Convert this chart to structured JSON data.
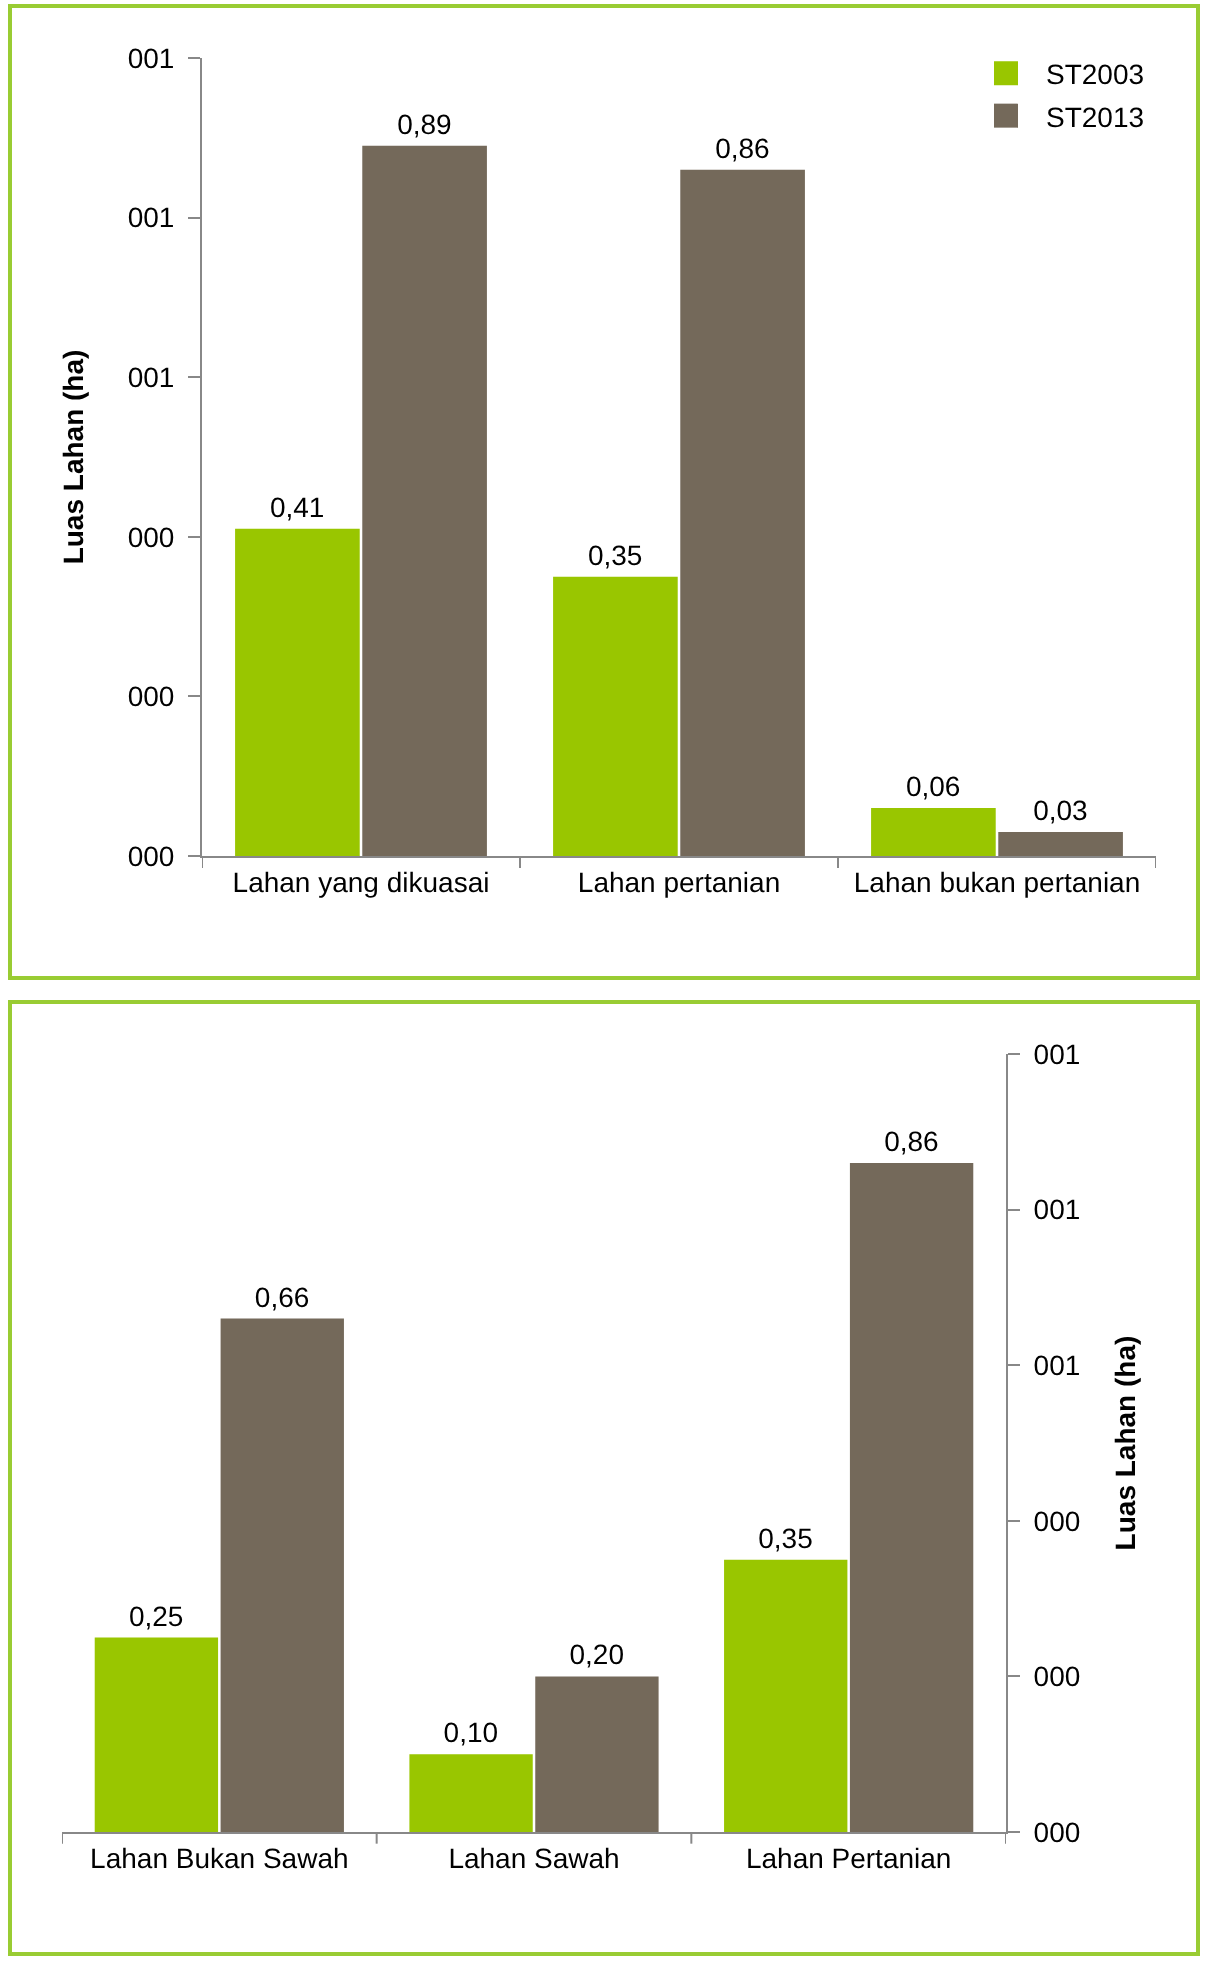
{
  "chart_data": [
    {
      "type": "bar",
      "ylabel": "Luas Lahan (ha)",
      "categories": [
        "Lahan yang dikuasai",
        "Lahan pertanian",
        "Lahan bukan pertanian"
      ],
      "series": [
        {
          "name": "ST2003",
          "color": "#99c600",
          "values": [
            0.41,
            0.35,
            0.06
          ],
          "value_labels": [
            "0,41",
            "0,35",
            "0,06"
          ]
        },
        {
          "name": "ST2013",
          "color": "#74695a",
          "values": [
            0.89,
            0.86,
            0.03
          ],
          "value_labels": [
            "0,89",
            "0,86",
            "0,03"
          ]
        }
      ],
      "ylim": [
        0,
        1
      ],
      "yticks": [
        {
          "value": 0,
          "label": "000"
        },
        {
          "value": 0.2,
          "label": "000"
        },
        {
          "value": 0.4,
          "label": "000"
        },
        {
          "value": 0.6,
          "label": "001"
        },
        {
          "value": 0.8,
          "label": "001"
        },
        {
          "value": 1,
          "label": "001"
        }
      ],
      "grid": false,
      "legend": "top right"
    },
    {
      "type": "bar",
      "ylabel": "Luas Lahan (ha)",
      "categories": [
        "Lahan Bukan Sawah",
        "Lahan Sawah",
        "Lahan Pertanian"
      ],
      "series": [
        {
          "color": "#99c600",
          "values": [
            0.25,
            0.1,
            0.35
          ],
          "value_labels": [
            "0,25",
            "0,10",
            "0,35"
          ]
        },
        {
          "color": "#74695a",
          "values": [
            0.66,
            0.2,
            0.86
          ],
          "value_labels": [
            "0,66",
            "0,20",
            "0,86"
          ]
        }
      ],
      "ylim": [
        0,
        1
      ],
      "yticks": [
        {
          "value": 0,
          "label": "000"
        },
        {
          "value": 0.2,
          "label": "000"
        },
        {
          "value": 0.4,
          "label": "000"
        },
        {
          "value": 0.6,
          "label": "001"
        },
        {
          "value": 0.8,
          "label": "001"
        },
        {
          "value": 1,
          "label": "001"
        }
      ],
      "grid": false,
      "legend": false
    }
  ]
}
